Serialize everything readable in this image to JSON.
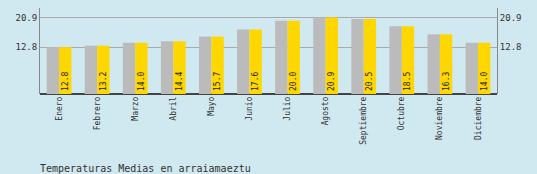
{
  "chart_data": {
    "type": "bar",
    "title": "Temperaturas Medias en arraiamaeztu",
    "categories": [
      "Enero",
      "Febrero",
      "Marzo",
      "Abril",
      "Mayo",
      "Junio",
      "Julio",
      "Agosto",
      "Septiembre",
      "Octubre",
      "Noviembre",
      "Diciembre"
    ],
    "series": [
      {
        "color": "#BBBBBB",
        "values": [
          12.8,
          13.2,
          14.0,
          14.4,
          15.7,
          17.6,
          20.0,
          20.9,
          20.5,
          18.5,
          16.3,
          14.0
        ]
      },
      {
        "color": "#FFD700",
        "values": [
          12.8,
          13.2,
          14.0,
          14.4,
          15.7,
          17.6,
          20.0,
          20.9,
          20.5,
          18.5,
          16.3,
          14.0
        ],
        "value_labels": [
          "12.8",
          "13.2",
          "14.0",
          "14.4",
          "15.7",
          "17.6",
          "20.0",
          "20.9",
          "20.5",
          "18.5",
          "16.3",
          "14.0"
        ]
      }
    ],
    "ylim": [
      0,
      23.5
    ],
    "yticks": [
      12.8,
      20.9
    ],
    "y2lim": [
      0,
      23.5
    ],
    "y2ticks": [
      12.8,
      20.9
    ],
    "grid": true,
    "data_labels": true
  }
}
